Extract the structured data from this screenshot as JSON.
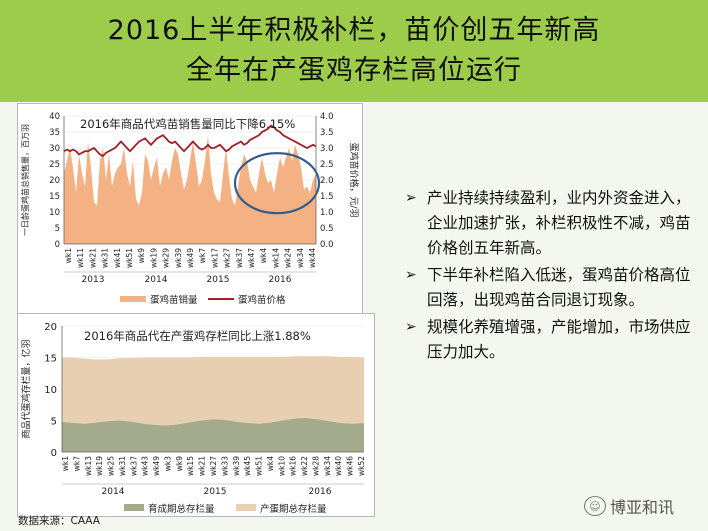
{
  "header": {
    "title_line1": "2016上半年积极补栏，苗价创五年新高",
    "title_line2": "全年在产蛋鸡存栏高位运行"
  },
  "bullets": [
    "产业持续持续盈利，业内外资金进入，企业加速扩张，补栏积极性不减，鸡苗价格创五年新高。",
    "下半年补栏陷入低迷，蛋鸡苗价格高位回落，出现鸡苗合同退订现象。",
    "规模化养殖增强，产能增加，市场供应压力加大。"
  ],
  "source": "数据来源：CAAA",
  "watermark": "博亚和讯",
  "chart_data": [
    {
      "type": "area",
      "title": "2016年商品代鸡苗销售量同比下降6.15%",
      "ylabel": "一日龄蛋鸡苗总销售量，百万羽",
      "y2label": "蛋鸡苗价格，元/羽",
      "ylim": [
        0,
        40
      ],
      "yticks": [
        0,
        5,
        10,
        15,
        20,
        25,
        30,
        35,
        40
      ],
      "y2lim": [
        0,
        4.0
      ],
      "y2ticks": [
        "0.0",
        "0.5",
        "1.0",
        "1.5",
        "2.0",
        "2.5",
        "3.0",
        "3.5",
        "4.0"
      ],
      "x_ticks": [
        "wk1",
        "wk11",
        "wk21",
        "wk31",
        "wk41",
        "wk51",
        "wk9",
        "wk19",
        "wk29",
        "wk39",
        "wk49",
        "wk7",
        "wk17",
        "wk27",
        "wk37",
        "wk47",
        "wk4",
        "wk14",
        "wk24",
        "wk34",
        "wk44"
      ],
      "years": [
        "2013",
        "2014",
        "2015",
        "2016"
      ],
      "series": [
        {
          "name": "蛋鸡苗销量",
          "axis": "left",
          "color": "#f4b183",
          "values": [
            22,
            26,
            30,
            24,
            16,
            28,
            22,
            18,
            32,
            24,
            13,
            12,
            26,
            30,
            20,
            28,
            18,
            22,
            24,
            25,
            30,
            22,
            18,
            26,
            14,
            12,
            16,
            28,
            26,
            20,
            24,
            27,
            18,
            22,
            24,
            20,
            26,
            30,
            28,
            22,
            17,
            20,
            26,
            32,
            25,
            18,
            20,
            26,
            34,
            22,
            16,
            14,
            13,
            22,
            30,
            21,
            14,
            12,
            18,
            24,
            28,
            26,
            20,
            18,
            16,
            22,
            27,
            22,
            19,
            20,
            16,
            22,
            27,
            24,
            27,
            30,
            26,
            31,
            28,
            24,
            17,
            18,
            16,
            20,
            22
          ]
        },
        {
          "name": "蛋鸡苗价格",
          "axis": "right",
          "color": "#a0202a",
          "values": [
            2.9,
            2.95,
            2.9,
            2.95,
            2.9,
            2.8,
            2.85,
            2.9,
            2.9,
            2.95,
            3.0,
            2.9,
            2.8,
            2.75,
            2.85,
            2.9,
            2.95,
            3.0,
            3.1,
            3.2,
            3.1,
            3.0,
            2.9,
            3.0,
            3.1,
            3.2,
            3.25,
            3.3,
            3.2,
            3.1,
            3.2,
            3.3,
            3.35,
            3.4,
            3.3,
            3.2,
            3.15,
            3.2,
            3.1,
            3.0,
            2.9,
            3.0,
            3.1,
            3.2,
            3.1,
            3.0,
            2.95,
            3.0,
            3.1,
            3.0,
            3.0,
            3.05,
            3.1,
            3.0,
            2.9,
            2.95,
            3.05,
            3.1,
            3.15,
            3.2,
            3.1,
            3.15,
            3.25,
            3.3,
            3.35,
            3.4,
            3.5,
            3.55,
            3.6,
            3.7,
            3.65,
            3.55,
            3.5,
            3.4,
            3.35,
            3.3,
            3.25,
            3.2,
            3.15,
            3.1,
            3.05,
            3.0,
            3.05,
            3.1,
            3.05
          ]
        }
      ],
      "legend_position": "bottom",
      "highlight": "ellipse around 2016 peak"
    },
    {
      "type": "area",
      "title": "2016年商品代在产蛋鸡存栏同比上涨1.88%",
      "ylabel": "商品代蛋鸡存栏量，亿羽",
      "ylim": [
        0,
        20
      ],
      "yticks": [
        0,
        5,
        10,
        15,
        20
      ],
      "x_ticks": [
        "wk1",
        "wk7",
        "wk13",
        "wk19",
        "wk25",
        "wk31",
        "wk37",
        "wk43",
        "wk49",
        "wk3",
        "wk9",
        "wk15",
        "wk21",
        "wk27",
        "wk33",
        "wk39",
        "wk45",
        "wk51",
        "wk4",
        "wk10",
        "wk16",
        "wk22",
        "wk28",
        "wk34",
        "wk40",
        "wk46",
        "wk52"
      ],
      "years": [
        "2014",
        "2015",
        "2016"
      ],
      "series": [
        {
          "name": "育成期总存栏量",
          "color": "#a4ab8c",
          "values": [
            4.8,
            4.6,
            4.5,
            4.7,
            4.9,
            5.0,
            4.8,
            4.5,
            4.3,
            4.2,
            4.4,
            4.7,
            5.0,
            5.2,
            5.1,
            4.8,
            4.6,
            4.5,
            4.7,
            5.0,
            5.3,
            5.4,
            5.2,
            4.9,
            4.6,
            4.5,
            4.6
          ]
        },
        {
          "name": "产蛋期总存栏量",
          "color": "#e8cfb2",
          "values": [
            10.2,
            10.4,
            10.3,
            10.0,
            9.8,
            9.9,
            10.1,
            10.5,
            10.7,
            10.8,
            10.6,
            10.3,
            10.1,
            9.9,
            10.0,
            10.3,
            10.5,
            10.6,
            10.4,
            10.1,
            9.9,
            9.8,
            10.0,
            10.3,
            10.5,
            10.6,
            10.4
          ]
        }
      ],
      "legend_position": "bottom"
    }
  ]
}
